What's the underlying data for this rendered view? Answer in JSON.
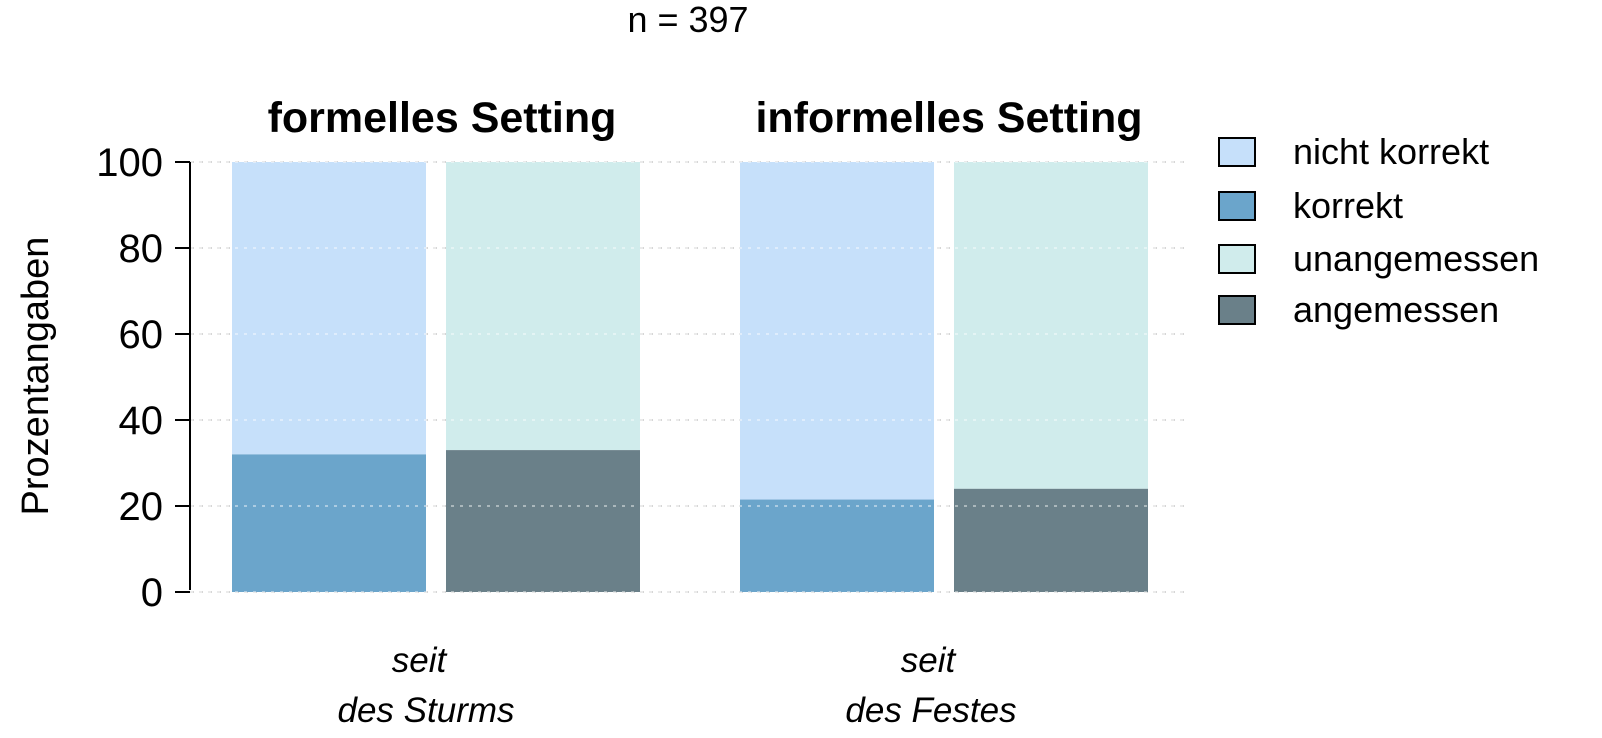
{
  "chart_data": {
    "type": "bar",
    "stacked": true,
    "title": "n = 397",
    "ylabel": "Prozentangaben",
    "ylim": [
      0,
      100
    ],
    "yticks": [
      "0",
      "20",
      "40",
      "60",
      "80",
      "100"
    ],
    "grid": true,
    "legend_position": "right",
    "colors": {
      "nicht_korrekt": "#c6e0fa",
      "korrekt": "#6ba5cb",
      "unangemessen": "#d0ecec",
      "angemessen": "#6a8089"
    },
    "legend": [
      {
        "label": "nicht korrekt",
        "color": "#c6e0fa"
      },
      {
        "label": "korrekt",
        "color": "#6ba5cb"
      },
      {
        "label": "unangemessen",
        "color": "#d0ecec"
      },
      {
        "label": "angemessen",
        "color": "#6a8089"
      }
    ],
    "panels": [
      {
        "title": "formelles Setting",
        "category_label": [
          "seit",
          "des Sturms"
        ],
        "bars": [
          {
            "lower_label": "korrekt",
            "lower": 32,
            "upper_label": "nicht korrekt",
            "upper": 68
          },
          {
            "lower_label": "angemessen",
            "lower": 33,
            "upper_label": "unangemessen",
            "upper": 67
          }
        ]
      },
      {
        "title": "informelles Setting",
        "category_label": [
          "seit",
          "des Festes"
        ],
        "bars": [
          {
            "lower_label": "korrekt",
            "lower": 21.5,
            "upper_label": "nicht korrekt",
            "upper": 78.5
          },
          {
            "lower_label": "angemessen",
            "lower": 24,
            "upper_label": "unangemessen",
            "upper": 76
          }
        ]
      }
    ]
  }
}
